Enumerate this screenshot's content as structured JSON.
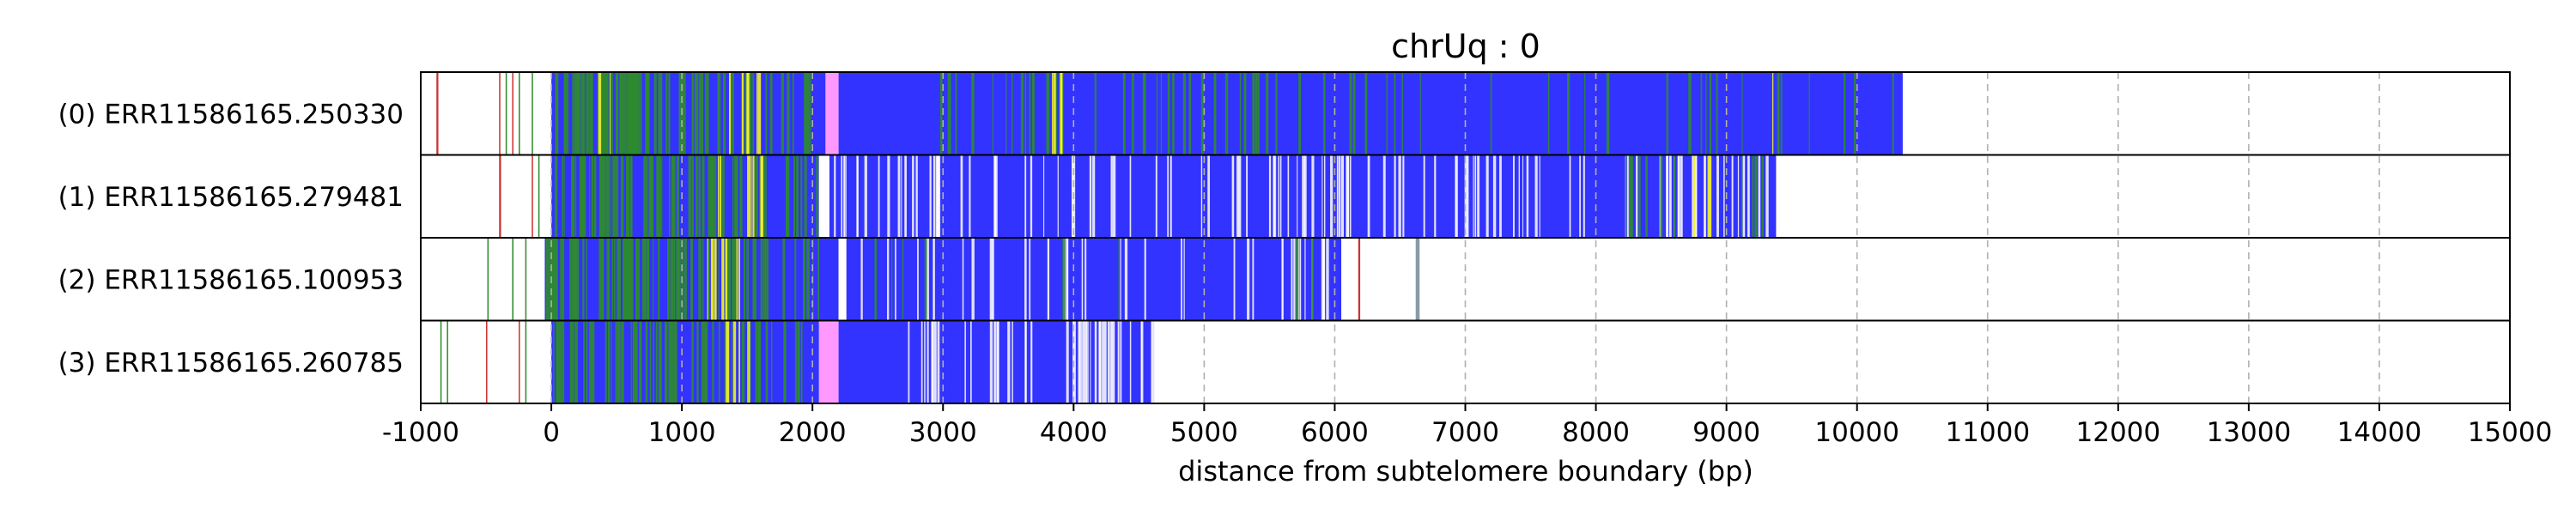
{
  "chart_data": {
    "type": "table",
    "title": "chrUq : 0",
    "xlabel": "distance from subtelomere boundary (bp)",
    "ylabel": "",
    "xlim": [
      -1000,
      15000
    ],
    "xticks": [
      -1000,
      0,
      1000,
      2000,
      3000,
      4000,
      5000,
      6000,
      7000,
      8000,
      9000,
      10000,
      11000,
      12000,
      13000,
      14000,
      15000
    ],
    "xtick_labels": [
      "-1000",
      "0",
      "1000",
      "2000",
      "3000",
      "4000",
      "5000",
      "6000",
      "7000",
      "8000",
      "9000",
      "10000",
      "11000",
      "12000",
      "13000",
      "14000",
      "15000"
    ],
    "grid": "vertical dashed",
    "colors": {
      "blue": "#3333ff",
      "green": "#2e8b2e",
      "yellow": "#f2f22a",
      "pink": "#ff99ff",
      "red": "#cc3333",
      "white": "#ffffff",
      "grey": "#889aa8",
      "cyan": "#33bbbb"
    },
    "reads": [
      {
        "label": "(0) ERR11586165.250330",
        "read_start": -900,
        "read_end": 10350,
        "segments": [
          {
            "start": -880,
            "end": -865,
            "color": "red"
          },
          {
            "start": -400,
            "end": -390,
            "color": "red"
          },
          {
            "start": -350,
            "end": -340,
            "color": "green"
          },
          {
            "start": -300,
            "end": -290,
            "color": "red"
          },
          {
            "start": -250,
            "end": -240,
            "color": "green"
          },
          {
            "start": -150,
            "end": -140,
            "color": "green"
          },
          {
            "start": 0,
            "end": 2100,
            "color": "blue"
          },
          {
            "start": 2100,
            "end": 2200,
            "color": "pink"
          },
          {
            "start": 2200,
            "end": 10350,
            "color": "blue"
          }
        ],
        "stripes": [
          {
            "start": 20,
            "end": 900,
            "color": "green",
            "count": 70
          },
          {
            "start": 900,
            "end": 1700,
            "color": "green",
            "count": 30
          },
          {
            "start": 1350,
            "end": 1600,
            "color": "yellow",
            "count": 7
          },
          {
            "start": 300,
            "end": 450,
            "color": "yellow",
            "count": 2
          },
          {
            "start": 1700,
            "end": 2050,
            "color": "green",
            "count": 6
          },
          {
            "start": 2900,
            "end": 6000,
            "color": "green",
            "count": 45
          },
          {
            "start": 3700,
            "end": 3900,
            "color": "yellow",
            "count": 4
          },
          {
            "start": 6000,
            "end": 10300,
            "color": "green",
            "count": 25
          },
          {
            "start": 9350,
            "end": 9400,
            "color": "yellow",
            "count": 1
          }
        ]
      },
      {
        "label": "(1) ERR11586165.279481",
        "read_start": -400,
        "read_end": 9380,
        "segments": [
          {
            "start": -400,
            "end": -385,
            "color": "red"
          },
          {
            "start": -150,
            "end": -140,
            "color": "red"
          },
          {
            "start": -100,
            "end": -90,
            "color": "green"
          },
          {
            "start": 0,
            "end": 2050,
            "color": "blue"
          },
          {
            "start": 2050,
            "end": 2130,
            "color": "white"
          },
          {
            "start": 2130,
            "end": 9380,
            "color": "blue"
          }
        ],
        "stripes": [
          {
            "start": 20,
            "end": 1000,
            "color": "green",
            "count": 60
          },
          {
            "start": 1000,
            "end": 1700,
            "color": "green",
            "count": 25
          },
          {
            "start": 1200,
            "end": 1650,
            "color": "yellow",
            "count": 8
          },
          {
            "start": 1700,
            "end": 2050,
            "color": "green",
            "count": 8
          },
          {
            "start": 2150,
            "end": 9380,
            "color": "white",
            "count": 120
          },
          {
            "start": 8000,
            "end": 9300,
            "color": "green",
            "count": 12
          },
          {
            "start": 8700,
            "end": 8900,
            "color": "yellow",
            "count": 3
          }
        ]
      },
      {
        "label": "(2) ERR11586165.100953",
        "read_start": -500,
        "read_end": 6650,
        "segments": [
          {
            "start": -490,
            "end": -480,
            "color": "green"
          },
          {
            "start": -300,
            "end": -290,
            "color": "green"
          },
          {
            "start": -200,
            "end": -190,
            "color": "green"
          },
          {
            "start": -50,
            "end": 2200,
            "color": "blue"
          },
          {
            "start": 2200,
            "end": 2260,
            "color": "white"
          },
          {
            "start": 2260,
            "end": 6050,
            "color": "blue"
          },
          {
            "start": 6180,
            "end": 6195,
            "color": "red"
          },
          {
            "start": 6620,
            "end": 6650,
            "color": "grey"
          }
        ],
        "stripes": [
          {
            "start": -50,
            "end": 1000,
            "color": "green",
            "count": 65
          },
          {
            "start": 1000,
            "end": 1600,
            "color": "green",
            "count": 25
          },
          {
            "start": 1150,
            "end": 1550,
            "color": "yellow",
            "count": 7
          },
          {
            "start": 1600,
            "end": 2200,
            "color": "green",
            "count": 10
          },
          {
            "start": 2260,
            "end": 6050,
            "color": "white",
            "count": 40
          },
          {
            "start": 2400,
            "end": 6000,
            "color": "green",
            "count": 8
          }
        ]
      },
      {
        "label": "(3) ERR11586165.260785",
        "read_start": -850,
        "read_end": 4620,
        "segments": [
          {
            "start": -850,
            "end": -840,
            "color": "green"
          },
          {
            "start": -800,
            "end": -790,
            "color": "green"
          },
          {
            "start": -500,
            "end": -490,
            "color": "red"
          },
          {
            "start": -250,
            "end": -240,
            "color": "red"
          },
          {
            "start": -200,
            "end": -190,
            "color": "green"
          },
          {
            "start": 0,
            "end": 2050,
            "color": "blue"
          },
          {
            "start": 2050,
            "end": 2200,
            "color": "pink"
          },
          {
            "start": 2200,
            "end": 4620,
            "color": "blue"
          }
        ],
        "stripes": [
          {
            "start": 0,
            "end": 1000,
            "color": "green",
            "count": 55
          },
          {
            "start": 1000,
            "end": 1600,
            "color": "green",
            "count": 20
          },
          {
            "start": 1300,
            "end": 1600,
            "color": "yellow",
            "count": 6
          },
          {
            "start": 1600,
            "end": 2050,
            "color": "green",
            "count": 8
          },
          {
            "start": 2700,
            "end": 4620,
            "color": "white",
            "count": 50
          }
        ]
      }
    ]
  }
}
